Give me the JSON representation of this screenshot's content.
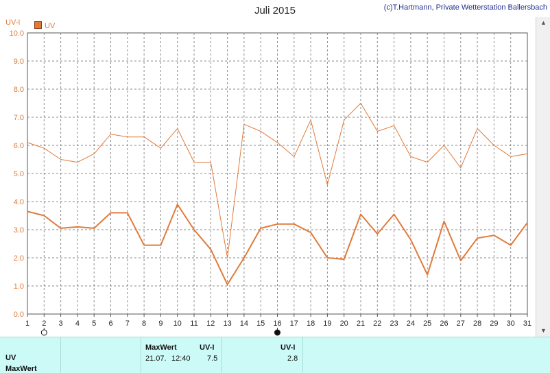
{
  "title": "Juli 2015",
  "copyright": "(c)T.Hartmann, Private Wetterstation Ballersbach",
  "colors": {
    "series": "#e07a3a",
    "grid": "#888888",
    "table_bg": "#ccfaf7"
  },
  "chart_data": {
    "type": "line",
    "ylabel": "UV-I",
    "ylim": [
      0,
      10
    ],
    "yticks": [
      "0.0",
      "1.0",
      "2.0",
      "3.0",
      "4.0",
      "5.0",
      "6.0",
      "7.0",
      "8.0",
      "9.0",
      "10.0"
    ],
    "x": [
      1,
      2,
      3,
      4,
      5,
      6,
      7,
      8,
      9,
      10,
      11,
      12,
      13,
      14,
      15,
      16,
      17,
      18,
      19,
      20,
      21,
      22,
      23,
      24,
      25,
      26,
      27,
      28,
      29,
      30,
      31
    ],
    "legend": [
      {
        "label": "UV"
      }
    ],
    "series": [
      {
        "name": "UV",
        "style": "max",
        "values": [
          6.1,
          5.9,
          5.5,
          5.4,
          5.7,
          6.4,
          6.3,
          6.3,
          5.9,
          6.6,
          5.4,
          5.4,
          2.0,
          6.75,
          6.5,
          6.1,
          5.6,
          6.9,
          4.6,
          6.9,
          7.5,
          6.5,
          6.7,
          5.6,
          5.4,
          6.0,
          5.2,
          6.6,
          6.0,
          5.6,
          5.7
        ]
      },
      {
        "name": "UV",
        "style": "avg",
        "values": [
          3.65,
          3.5,
          3.05,
          3.1,
          3.05,
          3.6,
          3.6,
          2.45,
          2.45,
          3.9,
          3.0,
          2.3,
          1.05,
          2.0,
          3.05,
          3.2,
          3.2,
          2.9,
          2.0,
          1.95,
          3.55,
          2.85,
          3.55,
          2.65,
          1.4,
          3.3,
          1.9,
          2.7,
          2.8,
          2.45,
          3.25
        ]
      }
    ],
    "markers": [
      {
        "day": 2,
        "symbol": "open-circle"
      },
      {
        "day": 16,
        "symbol": "filled-circle"
      }
    ]
  },
  "table": {
    "row_labels": [
      "UV",
      "MaxWert"
    ],
    "maxwert_header": "MaxWert",
    "unit_header_1": "UV-I",
    "max_date": "21.07.",
    "max_time": "12:40",
    "max_value": "7.5",
    "unit_header_2": "UV-I",
    "avg_value": "2.8"
  }
}
